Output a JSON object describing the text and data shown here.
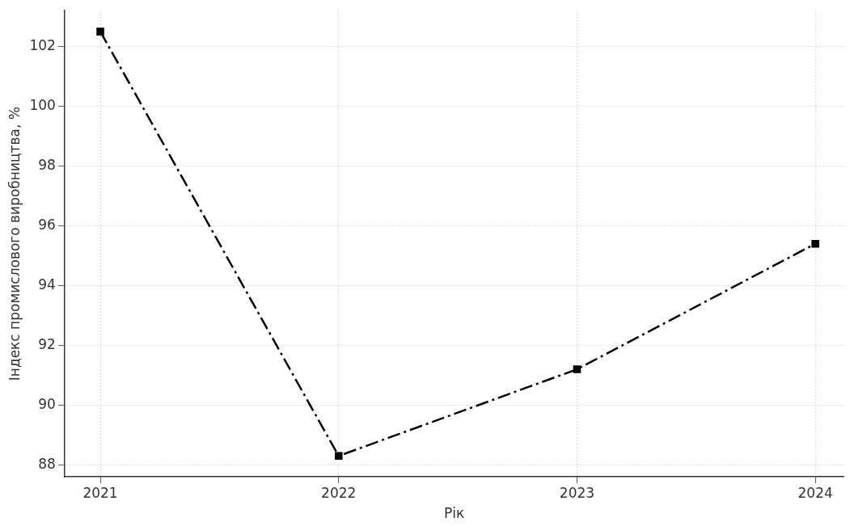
{
  "chart_data": {
    "type": "line",
    "xlabel": "Рік",
    "ylabel": "Індекс промислового виробництва, %",
    "x": [
      2021,
      2022,
      2023,
      2024
    ],
    "series": [
      {
        "color": "#000000",
        "values": [
          102.5,
          88.3,
          91.2,
          95.4
        ]
      }
    ],
    "xlim": [
      2020.85,
      2024.12
    ],
    "xticks": [
      2021,
      2022,
      2023,
      2024
    ],
    "ylim": [
      87.6,
      103.2
    ],
    "yticks": [
      88,
      90,
      92,
      94,
      96,
      98,
      100,
      102
    ],
    "grid": true,
    "legend": false,
    "marker": "square",
    "line_style": "dashed"
  }
}
